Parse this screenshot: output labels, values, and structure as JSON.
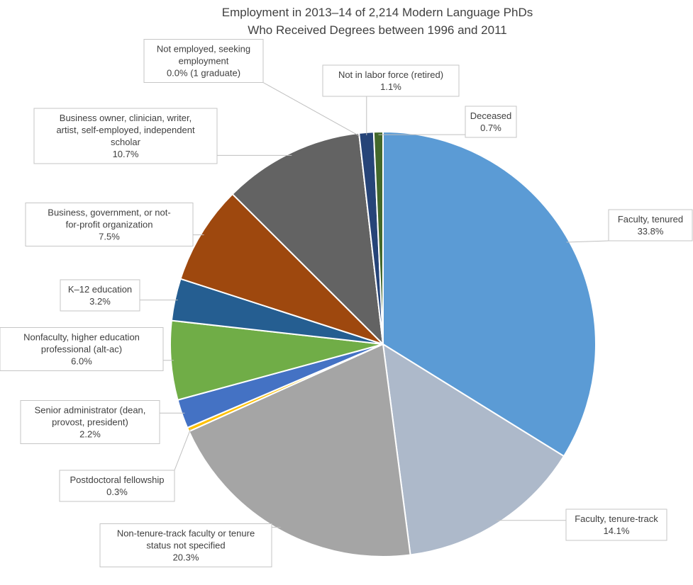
{
  "chart_data": {
    "type": "pie",
    "title": "Employment in 2013–14 of 2,214 Modern Language PhDs Who Received Degrees between 1996 and 2011",
    "title_lines": [
      "Employment in 2013–14 of 2,214 Modern Language PhDs",
      "Who Received Degrees between 1996 and 2011"
    ],
    "start_angle_deg": 0,
    "direction": "clockwise",
    "slices": [
      {
        "label": "Faculty, tenured",
        "label_lines": [
          "Faculty, tenured",
          "33.8%"
        ],
        "value": 33.8,
        "color": "#5b9bd5"
      },
      {
        "label": "Faculty, tenure-track",
        "label_lines": [
          "Faculty, tenure-track",
          "14.1%"
        ],
        "value": 14.1,
        "color": "#adb9ca"
      },
      {
        "label": "Non-tenure-track faculty or tenure status not specified",
        "label_lines": [
          "Non-tenure-track faculty or tenure",
          "status not specified",
          "20.3%"
        ],
        "value": 20.3,
        "color": "#a5a5a5"
      },
      {
        "label": "Postdoctoral fellowship",
        "label_lines": [
          "Postdoctoral fellowship",
          "0.3%"
        ],
        "value": 0.3,
        "color": "#ffc000"
      },
      {
        "label": "Senior administrator (dean, provost, president)",
        "label_lines": [
          "Senior administrator (dean,",
          "provost, president)",
          "2.2%"
        ],
        "value": 2.2,
        "color": "#4472c4"
      },
      {
        "label": "Nonfaculty, higher education professional (alt-ac)",
        "label_lines": [
          "Nonfaculty, higher education",
          "professional (alt-ac)",
          "6.0%"
        ],
        "value": 6.0,
        "color": "#70ad47"
      },
      {
        "label": "K–12 education",
        "label_lines": [
          "K–12 education",
          "3.2%"
        ],
        "value": 3.2,
        "color": "#255e91"
      },
      {
        "label": "Business, government, or not-for-profit organization",
        "label_lines": [
          "Business, government, or not-",
          "for-profit organization",
          "7.5%"
        ],
        "value": 7.5,
        "color": "#9e480e"
      },
      {
        "label": "Business owner, clinician, writer, artist, self-employed, independent scholar",
        "label_lines": [
          "Business owner, clinician, writer,",
          "artist, self-employed, independent",
          "scholar",
          "10.7%"
        ],
        "value": 10.7,
        "color": "#636363"
      },
      {
        "label": "Not employed, seeking employment",
        "label_lines": [
          "Not employed, seeking",
          "employment",
          "0.0% (1 graduate)"
        ],
        "value": 0.0,
        "color": "#997300"
      },
      {
        "label": "Not in labor force (retired)",
        "label_lines": [
          "Not in labor force (retired)",
          "1.1%"
        ],
        "value": 1.1,
        "color": "#264478"
      },
      {
        "label": "Deceased",
        "label_lines": [
          "Deceased",
          "0.7%"
        ],
        "value": 0.7,
        "color": "#43682b"
      }
    ]
  }
}
